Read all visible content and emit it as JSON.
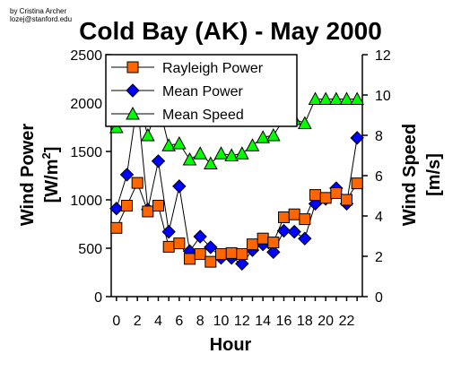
{
  "credit": {
    "line1": "by Cristina Archer",
    "line2": "lozej@stanford.edu"
  },
  "chart_data": {
    "type": "line",
    "title": "Cold Bay (AK) - May 2000",
    "xlabel": "Hour",
    "ylabel_left_line1": "Wind Power",
    "ylabel_left_line2_prefix": "[W/m",
    "ylabel_left_line2_sup": "2",
    "ylabel_left_line2_suffix": "]",
    "ylabel_right_line1": "Wind Speed",
    "ylabel_right_line2": "[m/s]",
    "x": [
      0,
      1,
      2,
      3,
      4,
      5,
      6,
      7,
      8,
      9,
      10,
      11,
      12,
      13,
      14,
      15,
      16,
      17,
      18,
      19,
      20,
      21,
      22,
      23
    ],
    "xticks": [
      "0",
      "2",
      "4",
      "6",
      "8",
      "10",
      "12",
      "14",
      "16",
      "18",
      "20",
      "22"
    ],
    "xlim": [
      -0.5,
      23.5
    ],
    "ylim_left": [
      0,
      2500
    ],
    "yticks_left": [
      "0",
      "500",
      "1000",
      "1500",
      "2000",
      "2500"
    ],
    "ylim_right": [
      0,
      12
    ],
    "yticks_right": [
      "0",
      "2",
      "4",
      "6",
      "8",
      "10",
      "12"
    ],
    "grid": false,
    "legend_position": "top-left",
    "series": [
      {
        "name": "Rayleigh Power",
        "axis": "left",
        "marker": "square",
        "color": "#ff6600",
        "values": [
          710,
          940,
          1175,
          880,
          940,
          515,
          550,
          390,
          440,
          360,
          440,
          450,
          440,
          540,
          600,
          560,
          820,
          850,
          800,
          1050,
          1020,
          1070,
          1000,
          1170
        ]
      },
      {
        "name": "Mean Power",
        "axis": "left",
        "marker": "diamond",
        "color": "#0000ff",
        "values": [
          910,
          1260,
          2010,
          900,
          1400,
          670,
          1140,
          470,
          620,
          510,
          400,
          400,
          340,
          480,
          540,
          460,
          680,
          670,
          600,
          960,
          1010,
          1120,
          960,
          1640
        ]
      },
      {
        "name": "Mean Speed",
        "axis": "right",
        "marker": "triangle",
        "color": "#00ff00",
        "values": [
          8.4,
          9.5,
          9.8,
          8.0,
          9.6,
          7.5,
          7.6,
          6.8,
          7.1,
          6.6,
          7.1,
          7.0,
          7.1,
          7.5,
          7.9,
          8.0,
          8.8,
          8.8,
          8.6,
          9.8,
          9.8,
          9.8,
          9.8,
          9.8
        ]
      }
    ]
  }
}
